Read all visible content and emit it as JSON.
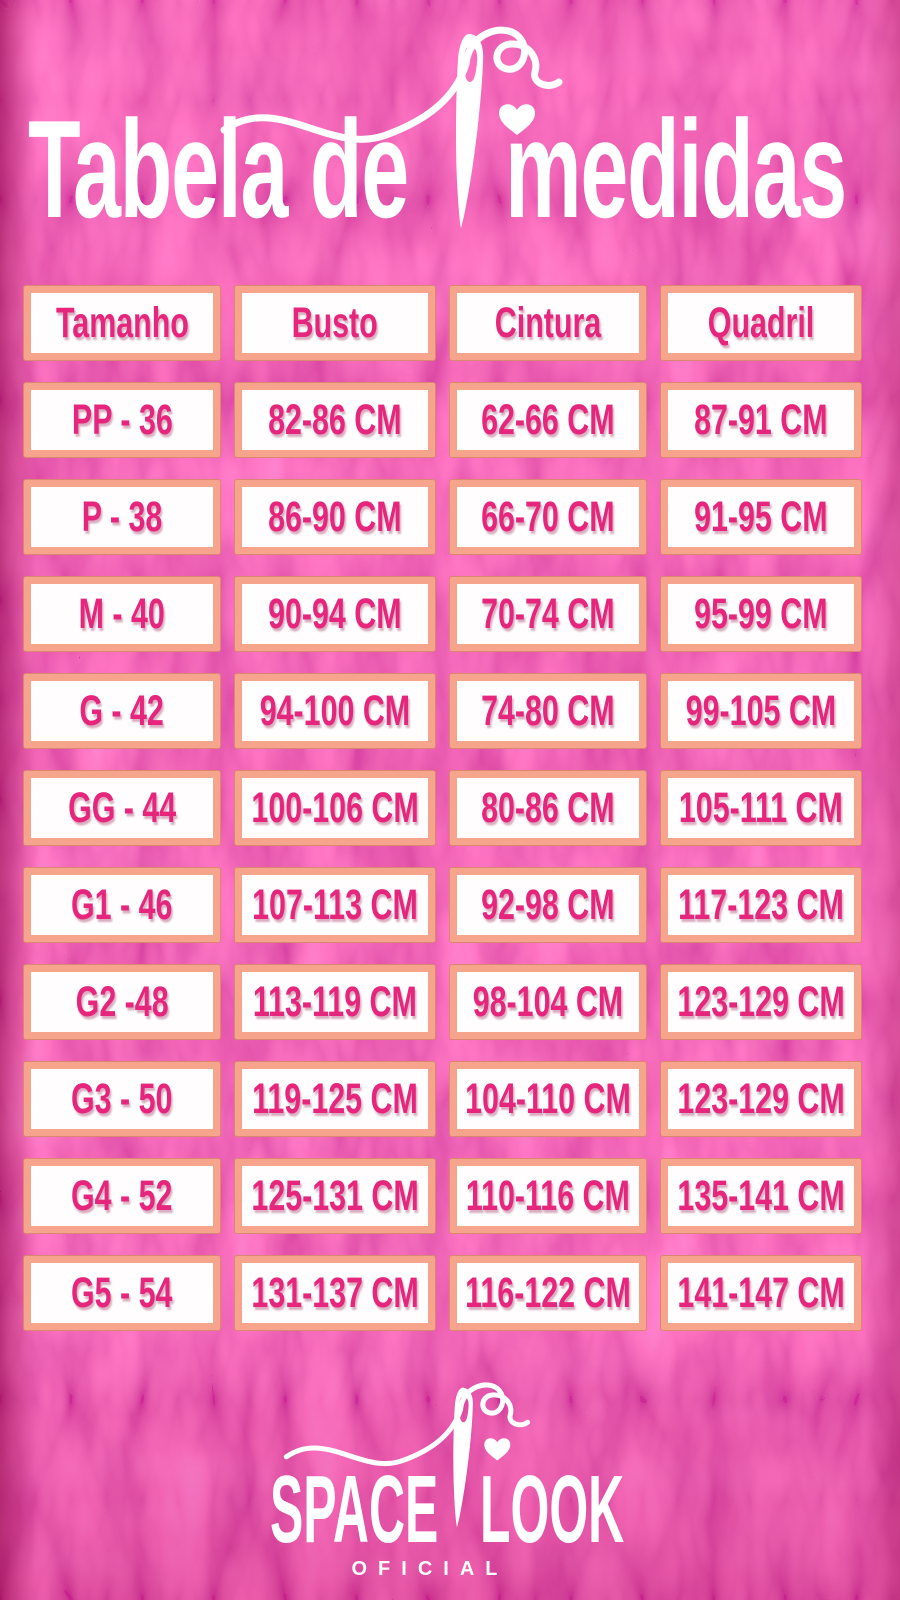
{
  "title": {
    "part1": "Tabela de",
    "part2": "medidas",
    "full": "Tabela de medidas"
  },
  "chart_data": {
    "type": "table",
    "title": "Tabela de medidas",
    "columns": [
      "Tamanho",
      "Busto",
      "Cintura",
      "Quadril"
    ],
    "rows": [
      [
        "PP - 36",
        "82-86 CM",
        "62-66 CM",
        "87-91 CM"
      ],
      [
        "P - 38",
        "86-90 CM",
        "66-70 CM",
        "91-95 CM"
      ],
      [
        "M - 40",
        "90-94 CM",
        "70-74 CM",
        "95-99 CM"
      ],
      [
        "G - 42",
        "94-100 CM",
        "74-80 CM",
        "99-105 CM"
      ],
      [
        "GG - 44",
        "100-106 CM",
        "80-86 CM",
        "105-111 CM"
      ],
      [
        "G1 - 46",
        "107-113 CM",
        "92-98 CM",
        "117-123 CM"
      ],
      [
        "G2 -48",
        "113-119 CM",
        "98-104 CM",
        "123-129 CM"
      ],
      [
        "G3 - 50",
        "119-125 CM",
        "104-110 CM",
        "123-129 CM"
      ],
      [
        "G4 - 52",
        "125-131 CM",
        "110-116 CM",
        "135-141 CM"
      ],
      [
        "G5  - 54",
        "131-137 CM",
        "116-122 CM",
        "141-147 CM"
      ]
    ],
    "units": "CM",
    "layout": {
      "header_row": true,
      "grid": "4 columns x 11 rows"
    }
  },
  "footer": {
    "brand_left": "SPACE",
    "brand_right": "LOOK",
    "subtitle": "OFICIAL"
  },
  "icons": {
    "needle": "needle-and-thread-icon",
    "heart": "heart-icon"
  },
  "colors": {
    "background": "#e3106f",
    "background_light": "#ff3da3",
    "background_dark": "#a70d57",
    "cell_border": "#f7a48c",
    "cell_background": "#ffffff",
    "cell_text": "#e6257d",
    "title_text": "#ffffff"
  }
}
